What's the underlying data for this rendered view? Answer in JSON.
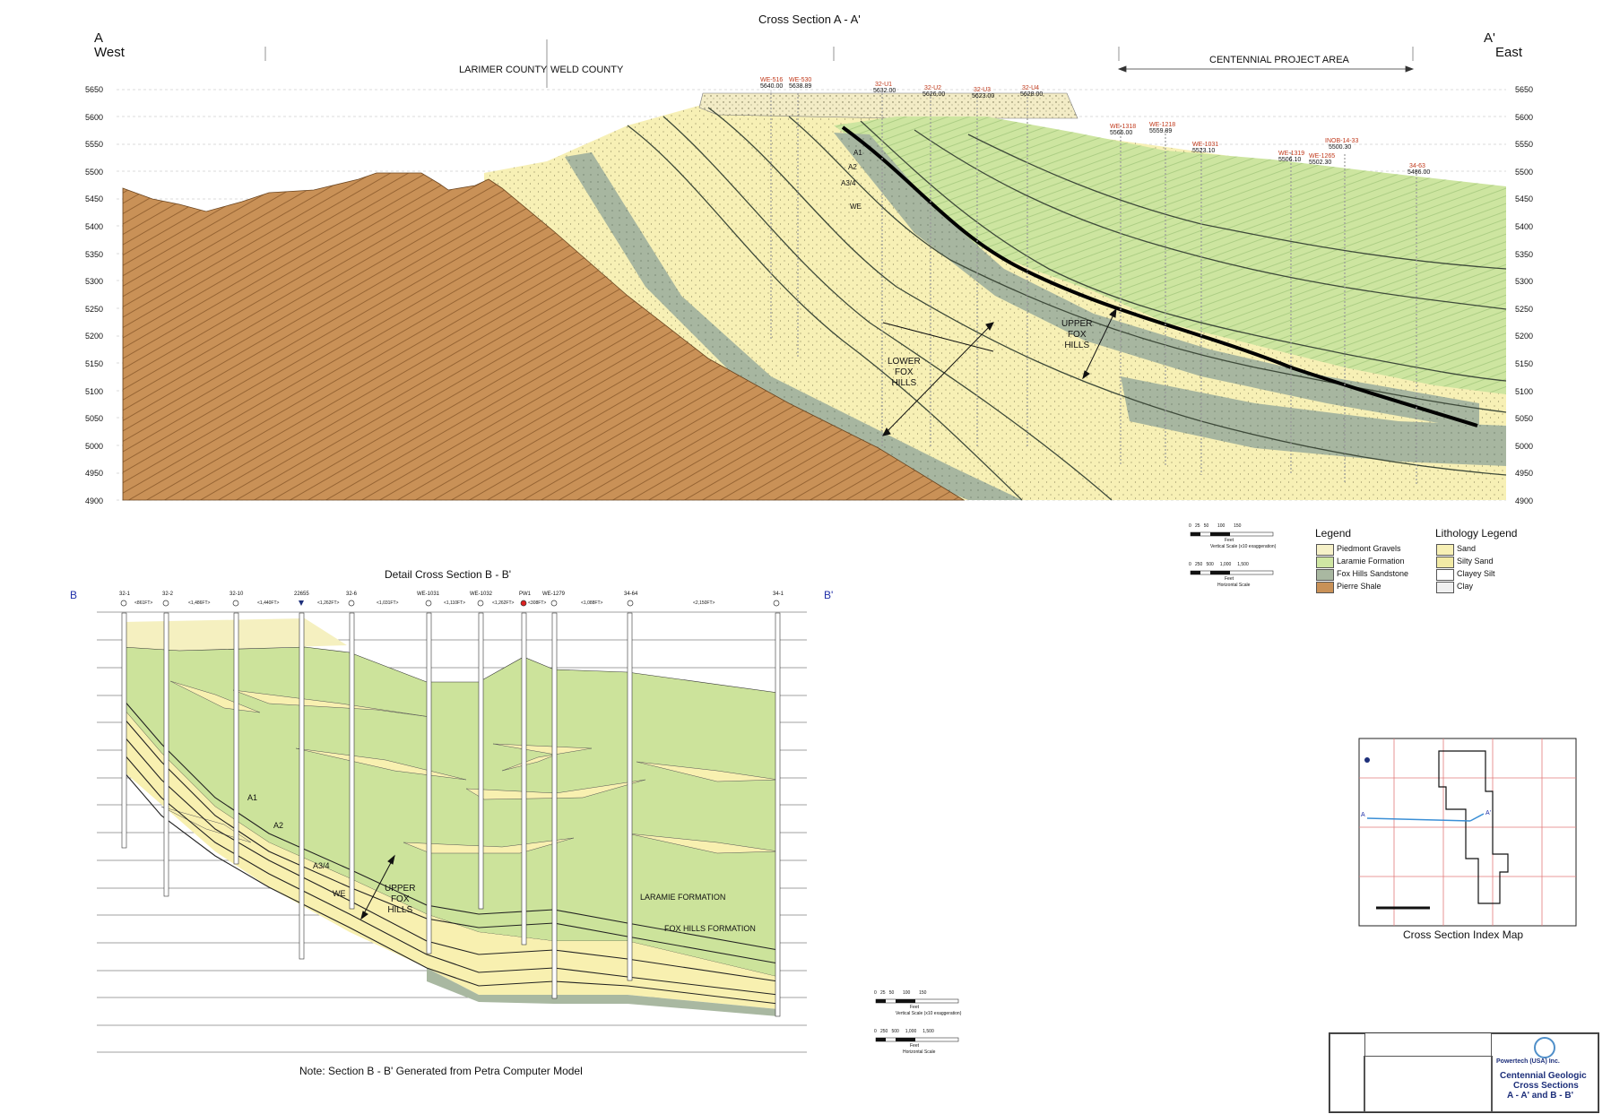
{
  "section_a": {
    "title": "Cross Section A - A'",
    "left_label": "A",
    "left_dir": "West",
    "right_label": "A'",
    "right_dir": "East",
    "county_left": "LARIMER COUNTY",
    "county_right": "WELD COUNTY",
    "project_area": "CENTENNIAL PROJECT AREA",
    "elevations": [
      "5650",
      "5600",
      "5550",
      "5500",
      "5450",
      "5400",
      "5350",
      "5300",
      "5250",
      "5200",
      "5150",
      "5100",
      "5050",
      "5000",
      "4950",
      "4900"
    ],
    "wells": [
      {
        "id": "WE-516",
        "elev": "5640.00"
      },
      {
        "id": "WE-530",
        "elev": "5638.89"
      },
      {
        "id": "32-U1",
        "elev": "5632.00"
      },
      {
        "id": "32-U2",
        "elev": "5626.00"
      },
      {
        "id": "32-U3",
        "elev": "5623.00"
      },
      {
        "id": "32-U4",
        "elev": "5628.00"
      },
      {
        "id": "WE-1318",
        "elev": "5566.00"
      },
      {
        "id": "WE-1218",
        "elev": "5559.89"
      },
      {
        "id": "WE-1031",
        "elev": "5523.10"
      },
      {
        "id": "WE-1319",
        "elev": "5506.10"
      },
      {
        "id": "WE-1265",
        "elev": "5502.30"
      },
      {
        "id": "INOB-14-33",
        "elev": "5500.30"
      },
      {
        "id": "34-63",
        "elev": "5486.00"
      }
    ],
    "units": [
      "A1",
      "A2",
      "A3/4",
      "WE"
    ],
    "lower_fox": "LOWER\nFOX\nHILLS",
    "upper_fox": "UPPER\nFOX\nHILLS"
  },
  "legend": {
    "title": "Legend",
    "items": [
      "Piedmont Gravels",
      "Laramie Formation",
      "Fox Hills Sandstone",
      "Pierre Shale"
    ],
    "colors": [
      "#f6f1c8",
      "#cfe6a3",
      "#a9b8a1",
      "#c99157"
    ]
  },
  "lith_legend": {
    "title": "Lithology Legend",
    "items": [
      "Sand",
      "Silty Sand",
      "Clayey Silt",
      "Clay"
    ]
  },
  "scale_a": {
    "vert_ticks": [
      "0",
      "25",
      "50",
      "100",
      "150"
    ],
    "vert_unit": "Feet",
    "vert_caption": "Vertical Scale (x10 exaggeration)",
    "horiz_ticks": [
      "0",
      "250",
      "500",
      "1,000",
      "1,500"
    ],
    "horiz_unit": "Feet",
    "horiz_caption": "Horizontal Scale"
  },
  "section_b": {
    "title": "Detail Cross Section B - B'",
    "left_label": "B",
    "right_label": "B'",
    "wells": [
      "32-1",
      "32-2",
      "32-10",
      "22655",
      "32-6",
      "WE-1031",
      "WE-1032",
      "PW1",
      "WE-1279",
      "34-64",
      "34-1"
    ],
    "distances": [
      "<861FT>",
      "<1,486FT>",
      "<1,440FT>",
      "<1,262FT>",
      "<1,031FT>",
      "<1,110FT>",
      "<1,262FT>",
      "<308FT>",
      "<1,088FT>",
      "<2,150FT>"
    ],
    "units": [
      "A1",
      "A2",
      "A3/4",
      "WE"
    ],
    "upper_fox": "UPPER\nFOX\nHILLS",
    "laramie": "LARAMIE FORMATION",
    "fox_hills": "FOX HILLS FORMATION",
    "note": "Note:  Section B - B' Generated from Petra Computer Model"
  },
  "scale_b": {
    "vert_ticks": [
      "0",
      "25",
      "50",
      "100",
      "150"
    ],
    "vert_unit": "Feet",
    "vert_caption": "Vertical Scale (x10 exaggeration)",
    "horiz_ticks": [
      "0",
      "250",
      "500",
      "1,000",
      "1,500"
    ],
    "horiz_unit": "Feet",
    "horiz_caption": "Horizontal Scale"
  },
  "index_map": {
    "caption": "Cross Section Index Map",
    "a_label": "A",
    "a2_label": "A'"
  },
  "title_block": {
    "company": "Powertech (USA) Inc.",
    "line1": "Centennial Geologic",
    "line2": "Cross Sections",
    "line3": "A - A' and B - B'"
  }
}
